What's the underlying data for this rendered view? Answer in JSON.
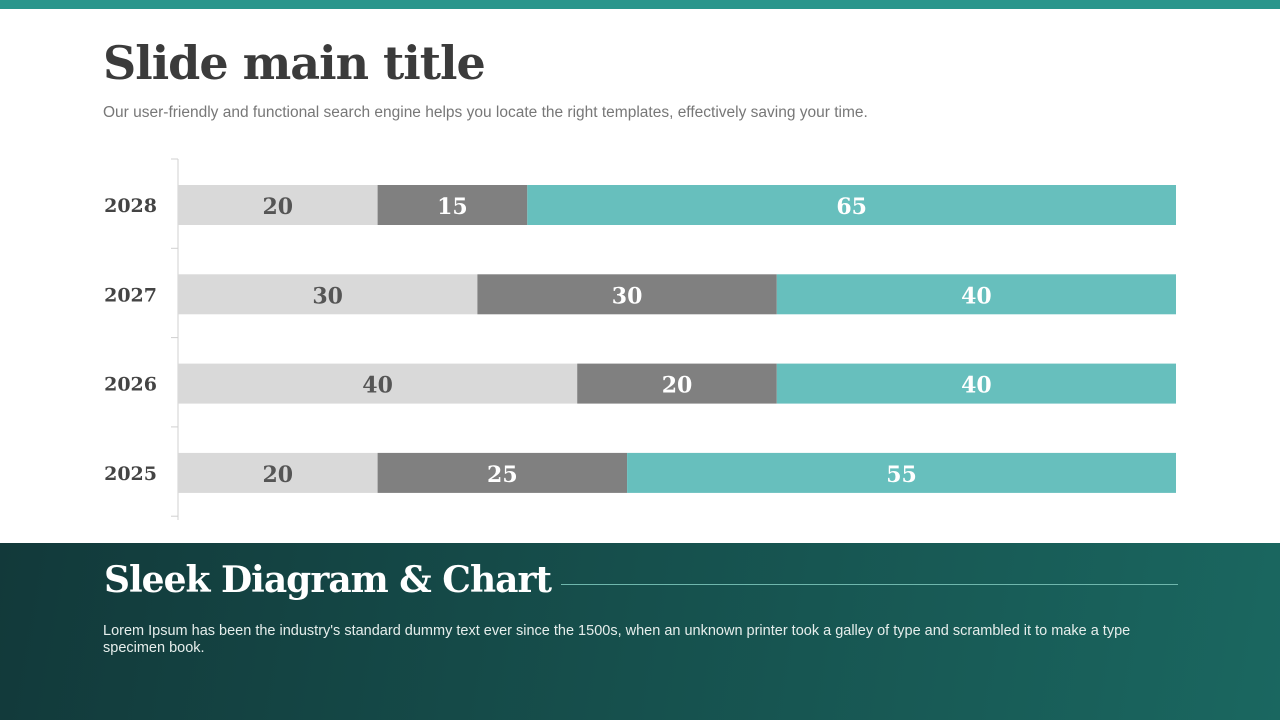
{
  "slide": {
    "title": "Slide main title",
    "subtitle": "Our user-friendly and functional search engine helps you locate the right templates, effectively saving your time."
  },
  "footer": {
    "title": "Sleek Diagram & Chart",
    "text": "Lorem Ipsum has been the industry's standard dummy text ever since the 1500s, when an unknown printer took a galley of type and scrambled it to make a type specimen book."
  },
  "colors": {
    "accent_band": "#2a968c",
    "footer_start": "#12393a",
    "footer_end": "#1a6760",
    "segment_light": "#d9d9d9",
    "segment_mid": "#808080",
    "segment_teal": "#67bfbd"
  },
  "chart_data": {
    "type": "bar",
    "orientation": "horizontal",
    "stacked": true,
    "categories": [
      "2028",
      "2027",
      "2026",
      "2025"
    ],
    "series": [
      {
        "values": [
          20,
          30,
          40,
          20
        ]
      },
      {
        "values": [
          15,
          30,
          20,
          25
        ]
      },
      {
        "values": [
          65,
          40,
          40,
          55
        ]
      }
    ],
    "xlim": [
      0,
      100
    ],
    "grid": false,
    "data_labels": true
  }
}
